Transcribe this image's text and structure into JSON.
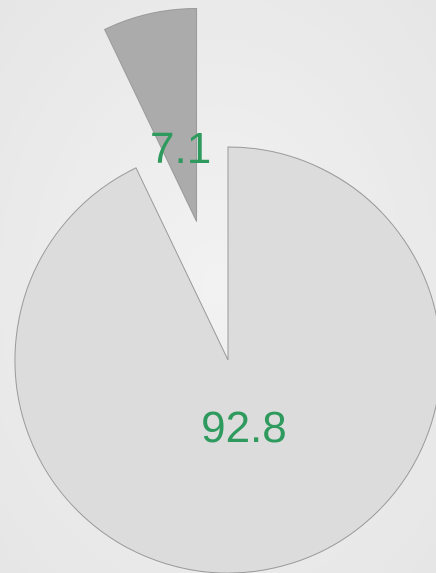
{
  "chart_data": {
    "type": "pie",
    "values": [
      92.8,
      7.1
    ],
    "colors": [
      "#dcdcdc",
      "#ababab"
    ],
    "label_color": "#2e9a5e"
  }
}
